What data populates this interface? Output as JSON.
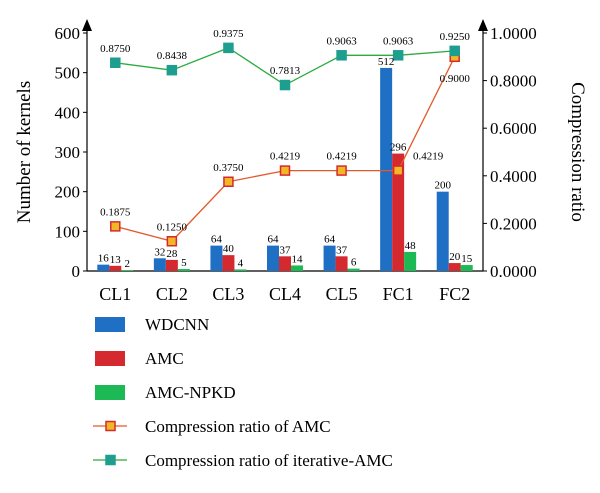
{
  "chart_data": {
    "type": "bar",
    "categories": [
      "CL1",
      "CL2",
      "CL3",
      "CL4",
      "CL5",
      "FC1",
      "FC2"
    ],
    "ylabel_left": "Number of kernels",
    "ylabel_right": "Compression ratio",
    "ylim_left": [
      0,
      600
    ],
    "ylim_right": [
      0,
      1
    ],
    "yticks_left": [
      "0",
      "100",
      "200",
      "300",
      "400",
      "500",
      "600"
    ],
    "yticks_right": [
      "0.0000",
      "0.2000",
      "0.4000",
      "0.6000",
      "0.8000",
      "1.0000"
    ],
    "bar_series": [
      {
        "name": "WDCNN",
        "color": "#1f6fc5",
        "values": [
          16,
          32,
          64,
          64,
          64,
          512,
          200
        ],
        "labels": [
          "16",
          "32",
          "64",
          "64",
          "64",
          "512",
          "200"
        ]
      },
      {
        "name": "AMC",
        "color": "#d42a2f",
        "values": [
          13,
          28,
          40,
          37,
          37,
          296,
          20
        ],
        "labels": [
          "13",
          "28",
          "40",
          "37",
          "37",
          "296",
          "20"
        ]
      },
      {
        "name": "AMC-NPKD",
        "color": "#1db954",
        "values": [
          2,
          5,
          4,
          14,
          6,
          48,
          15
        ],
        "labels": [
          "2",
          "5",
          "4",
          "14",
          "6",
          "48",
          "15"
        ]
      }
    ],
    "line_series": [
      {
        "name": "Compression ratio of AMC",
        "line_color": "#e3592b",
        "marker_fill": "#f2b724",
        "marker_stroke": "#d42a2f",
        "values": [
          0.1875,
          0.125,
          0.375,
          0.4219,
          0.4219,
          0.4219,
          0.9
        ],
        "labels": [
          "0.1875",
          "0.1250",
          "0.3750",
          "0.4219",
          "0.4219",
          "0.4219",
          "0.9000"
        ]
      },
      {
        "name": "Compression ratio of iterative-AMC",
        "line_color": "#2bab3f",
        "marker_fill": "#1e9e8f",
        "marker_stroke": "#1e9e8f",
        "values": [
          0.875,
          0.8438,
          0.9375,
          0.7813,
          0.9063,
          0.9063,
          0.925
        ],
        "labels": [
          "0.8750",
          "0.8438",
          "0.9375",
          "0.7813",
          "0.9063",
          "0.9063",
          "0.9250"
        ]
      }
    ],
    "grid": false,
    "legend_position": "bottom"
  }
}
